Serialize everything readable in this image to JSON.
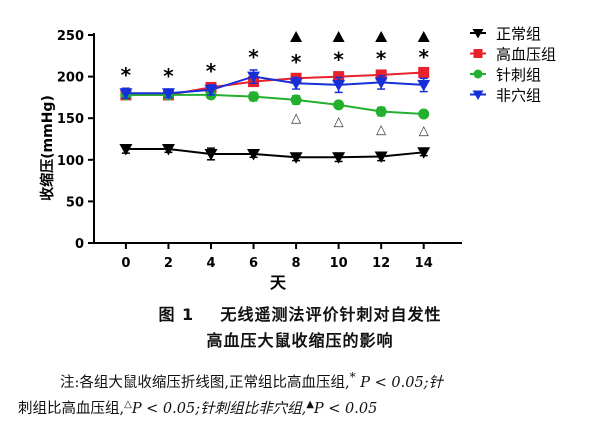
{
  "figure": {
    "caption_num": "图 1",
    "caption_title_1": "无线遥测法评价针刺对自发性",
    "caption_title_2": "高血压大鼠收缩压的影响",
    "note_1": "注:各组大鼠收缩压折线图,正常组比高血压组,",
    "note_sym_1": "*",
    "note_p_1": "P < 0.05;针",
    "note_2": "刺组比高血压组,",
    "note_sym_2": "△",
    "note_p_2": "P < 0.05;针刺组比非穴组,",
    "note_sym_3": "▲",
    "note_p_3": "P < 0.05"
  },
  "chart_data": {
    "type": "line",
    "xlabel": "天",
    "ylabel": "收缩压(mmHg)",
    "x": [
      0,
      2,
      4,
      6,
      8,
      10,
      12,
      14
    ],
    "ylim": [
      0,
      250
    ],
    "yticks": [
      0,
      50,
      100,
      150,
      200,
      250
    ],
    "grid": false,
    "legend_position": "top-right",
    "series": [
      {
        "name": "正常组",
        "color": "#000000",
        "marker": "triangle-down",
        "values": [
          113,
          113,
          107,
          107,
          103,
          103,
          104,
          109
        ],
        "errors": [
          5,
          4,
          7,
          4,
          4,
          5,
          5,
          4
        ]
      },
      {
        "name": "高血压组",
        "color": "#e8212b",
        "marker": "square",
        "values": [
          178,
          178,
          187,
          194,
          198,
          200,
          202,
          205
        ],
        "errors": [
          5,
          4,
          4,
          5,
          4,
          5,
          4,
          3
        ]
      },
      {
        "name": "针刺组",
        "color": "#22b02e",
        "marker": "circle",
        "values": [
          178,
          178,
          178,
          176,
          172,
          166,
          158,
          155
        ],
        "errors": [
          4,
          4,
          4,
          5,
          5,
          3,
          5,
          3
        ]
      },
      {
        "name": "非穴组",
        "color": "#1630d8",
        "marker": "triangle-down",
        "values": [
          180,
          180,
          184,
          200,
          192,
          190,
          193,
          190
        ],
        "errors": [
          6,
          5,
          6,
          8,
          7,
          9,
          8,
          8
        ]
      }
    ],
    "annotations": {
      "star": {
        "symbol": "*",
        "x": [
          0,
          2,
          4,
          6,
          8,
          10,
          12,
          14
        ]
      },
      "open_triangle": {
        "symbol": "△",
        "x": [
          8,
          10,
          12,
          14
        ]
      },
      "filled_triangle": {
        "symbol": "▲",
        "x": [
          8,
          10,
          12,
          14
        ]
      }
    }
  }
}
